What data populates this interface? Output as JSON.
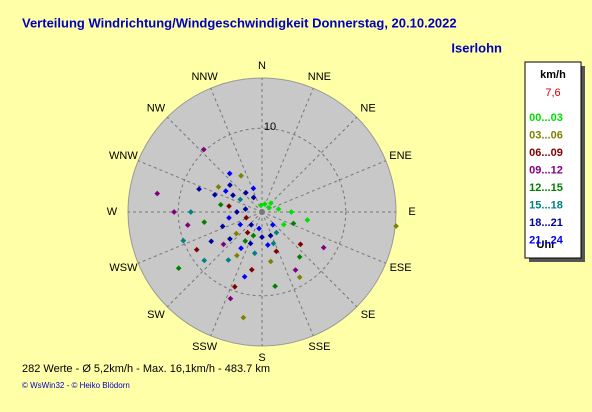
{
  "chart_data": {
    "type": "polar-scatter",
    "title": "Verteilung Windrichtung/Windgeschwindigkeit  Donnerstag, 20.10.2022",
    "location": "Iserlohn",
    "directions": [
      "N",
      "NNE",
      "NE",
      "ENE",
      "E",
      "ESE",
      "SE",
      "SSE",
      "S",
      "SSW",
      "SW",
      "WSW",
      "W",
      "WNW",
      "NW",
      "NNW"
    ],
    "rlim": [
      0,
      16
    ],
    "rticks": [
      10
    ],
    "legend_title": "km/h",
    "legend_value": "7,6",
    "legend_footer": "Uhr",
    "footer": "282 Werte   -   Ø 5,2km/h  -  Max. 16,1km/h   -   483.7 km",
    "credit": "© WsWin32  -  © Heiko Blödorn",
    "series": [
      {
        "name": "00...03",
        "color": "#00e000",
        "direction": [
          60,
          80,
          100,
          45,
          20,
          350,
          120,
          90
        ],
        "speed": [
          1,
          2,
          5.5,
          1.5,
          1,
          0.8,
          3,
          3.5
        ]
      },
      {
        "name": "03...06",
        "color": "#808000",
        "direction": [
          300,
          210,
          190,
          150,
          170,
          230,
          330,
          96
        ],
        "speed": [
          6,
          6,
          12.8,
          9,
          6,
          4,
          5,
          16.1
        ]
      },
      {
        "name": "06...09",
        "color": "#800000",
        "direction": [
          240,
          200,
          160,
          190,
          280,
          130,
          215,
          250
        ],
        "speed": [
          9,
          9.5,
          5,
          7,
          4,
          6,
          3,
          2
        ]
      },
      {
        "name": "09...12",
        "color": "#800080",
        "direction": [
          280,
          317,
          260,
          200,
          150,
          120,
          230,
          270
        ],
        "speed": [
          12.7,
          10.2,
          9,
          11,
          8,
          8.5,
          6,
          10.5
        ]
      },
      {
        "name": "12...15",
        "color": "#008000",
        "direction": [
          236,
          280,
          210,
          140,
          110,
          260,
          170,
          200
        ],
        "speed": [
          12,
          5,
          4,
          7,
          4,
          7,
          9,
          3
        ]
      },
      {
        "name": "15...18",
        "color": "#008080",
        "direction": [
          250,
          230,
          190,
          160,
          270,
          145,
          215,
          300
        ],
        "speed": [
          10,
          9,
          5,
          4,
          8.5,
          3,
          7,
          3
        ]
      },
      {
        "name": "18...21",
        "color": "#0000a0",
        "direction": [
          300,
          310,
          290,
          320,
          270,
          250,
          230,
          200,
          180,
          160,
          240,
          330,
          290,
          220,
          280
        ],
        "speed": [
          4,
          5,
          6,
          3,
          3,
          5,
          5,
          4,
          3,
          3,
          7,
          2,
          8,
          2,
          2
        ]
      },
      {
        "name": "21...24",
        "color": "#0000ff",
        "direction": [
          340,
          300,
          260,
          210,
          190,
          170,
          140,
          320,
          240,
          195
        ],
        "speed": [
          3,
          5,
          4,
          5,
          2,
          4,
          2,
          6,
          3,
          8
        ]
      }
    ]
  }
}
